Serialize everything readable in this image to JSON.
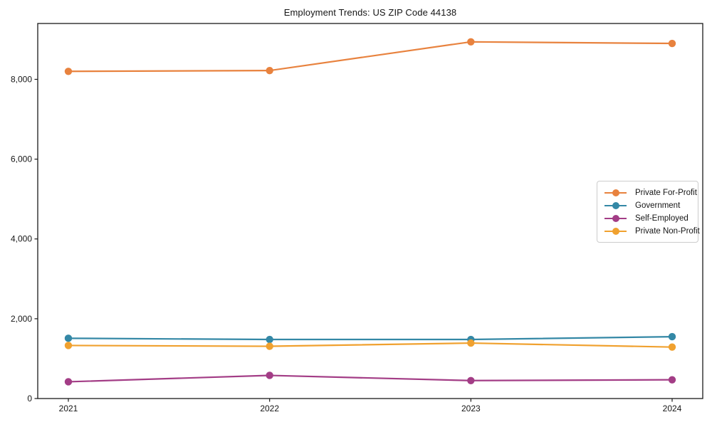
{
  "figure": {
    "title": "Employment Trends: US ZIP Code 44138",
    "background": "#ffffff"
  },
  "chart_data": {
    "type": "line",
    "title": "Employment Trends: US ZIP Code 44138",
    "categories": [
      "2021",
      "2022",
      "2023",
      "2024"
    ],
    "series": [
      {
        "name": "Private For-Profit",
        "color": "#e8823e",
        "values": [
          8200,
          8220,
          8940,
          8900
        ]
      },
      {
        "name": "Government",
        "color": "#3488a6",
        "values": [
          1510,
          1480,
          1480,
          1550
        ]
      },
      {
        "name": "Self-Employed",
        "color": "#a33d86",
        "values": [
          420,
          580,
          450,
          470
        ]
      },
      {
        "name": "Private Non-Profit",
        "color": "#f0a12f",
        "values": [
          1330,
          1310,
          1390,
          1290
        ]
      }
    ],
    "xlabel": "",
    "ylabel": "",
    "ylim": [
      0,
      9400
    ],
    "yticks": [
      0,
      2000,
      4000,
      6000,
      8000
    ],
    "ytick_labels": [
      "0",
      "2,000",
      "4,000",
      "6,000",
      "8,000"
    ],
    "grid": false,
    "marker": "circle",
    "line_width": 2.2,
    "marker_radius": 5.2,
    "axis_color": "#1a1a1a",
    "text_color": "#151515",
    "legend": {
      "position": "center-right",
      "entries": [
        "Private For-Profit",
        "Government",
        "Self-Employed",
        "Private Non-Profit"
      ]
    }
  }
}
